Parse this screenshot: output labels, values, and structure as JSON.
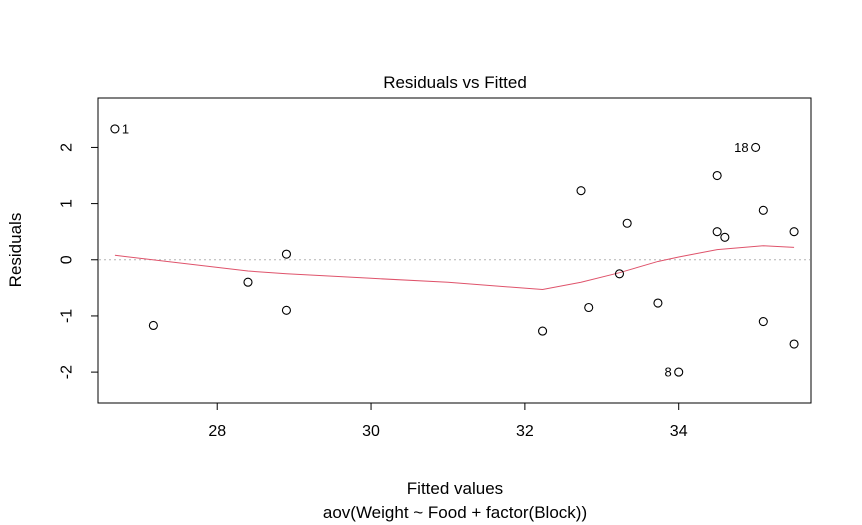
{
  "chart_data": {
    "type": "scatter",
    "title": "Residuals vs Fitted",
    "xlabel": "Fitted values",
    "subtitle": "aov(Weight ~ Food + factor(Block))",
    "ylabel": "Residuals",
    "xlim": [
      26.45,
      35.72
    ],
    "ylim": [
      -2.55,
      2.88
    ],
    "xticks": [
      28,
      30,
      32,
      34
    ],
    "yticks": [
      -2,
      -1,
      0,
      1,
      2
    ],
    "grid": false,
    "reference_line": {
      "y": 0,
      "style": "dotted",
      "color": "#b3b3b3"
    },
    "points": [
      {
        "x": 26.67,
        "y": 2.33,
        "label": "1"
      },
      {
        "x": 27.17,
        "y": -1.17
      },
      {
        "x": 28.4,
        "y": -0.4
      },
      {
        "x": 28.9,
        "y": 0.1
      },
      {
        "x": 28.9,
        "y": -0.9
      },
      {
        "x": 32.23,
        "y": -1.27
      },
      {
        "x": 32.73,
        "y": 1.23
      },
      {
        "x": 32.83,
        "y": -0.85
      },
      {
        "x": 33.23,
        "y": -0.25
      },
      {
        "x": 33.33,
        "y": 0.65
      },
      {
        "x": 33.73,
        "y": -0.77
      },
      {
        "x": 34.0,
        "y": -2.0,
        "label": "8"
      },
      {
        "x": 34.5,
        "y": 1.5
      },
      {
        "x": 34.5,
        "y": 0.5
      },
      {
        "x": 34.6,
        "y": 0.4
      },
      {
        "x": 35.0,
        "y": 2.0,
        "label": "18"
      },
      {
        "x": 35.1,
        "y": 0.88
      },
      {
        "x": 35.1,
        "y": -1.1
      },
      {
        "x": 35.5,
        "y": 0.5
      },
      {
        "x": 35.5,
        "y": -1.5
      }
    ],
    "smoother": {
      "color": "#df536b",
      "x": [
        26.67,
        28.4,
        28.9,
        30.0,
        31.0,
        32.23,
        32.73,
        33.23,
        33.73,
        34.0,
        34.5,
        35.1,
        35.5
      ],
      "y": [
        0.08,
        -0.2,
        -0.25,
        -0.33,
        -0.4,
        -0.53,
        -0.4,
        -0.23,
        -0.03,
        0.05,
        0.18,
        0.25,
        0.22
      ]
    }
  }
}
